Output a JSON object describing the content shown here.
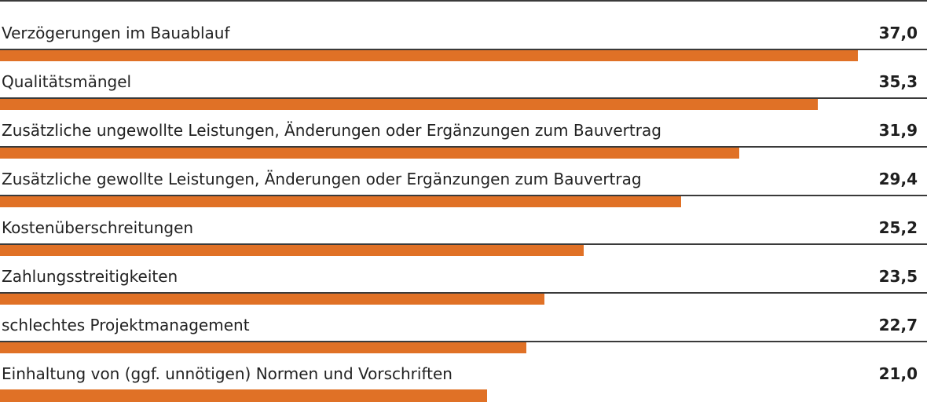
{
  "chart_data": {
    "type": "bar",
    "orientation": "horizontal",
    "categories": [
      "Verzögerungen im Bauablauf",
      "Qualitätsmängel",
      "Zusätzliche ungewollte Leistungen, Änderungen oder Ergänzungen zum Bauvertrag",
      "Zusätzliche gewollte Leistungen, Änderungen oder Ergänzungen zum Bauvertrag",
      "Kostenüberschreitungen",
      "Zahlungsstreitigkeiten",
      "schlechtes Projektmanagement",
      "Einhaltung von (ggf. unnötigen) Normen und Vorschriften"
    ],
    "values": [
      37.0,
      35.3,
      31.9,
      29.4,
      25.2,
      23.5,
      22.7,
      21.0
    ],
    "value_labels": [
      "37,0",
      "35,3",
      "31,9",
      "29,4",
      "25,2",
      "23,5",
      "22,7",
      "21,0"
    ],
    "title": "",
    "xlabel": "",
    "ylabel": "",
    "xlim": [
      0,
      40
    ],
    "grid": false,
    "legend": "none",
    "colors": {
      "bar": "#E07126",
      "divider": "#3a3a3a",
      "text": "#222222"
    }
  }
}
